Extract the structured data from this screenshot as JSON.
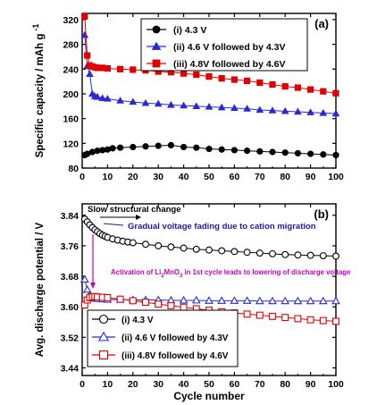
{
  "chart_data": [
    {
      "panel": "(a)",
      "type": "scatter",
      "ylabel": "Specific capacity / mAh g",
      "ylabel_sup": "-1",
      "xlim": [
        0,
        100
      ],
      "ylim": [
        80,
        330
      ],
      "xticks": [
        0,
        10,
        20,
        30,
        40,
        50,
        60,
        70,
        80,
        90,
        100
      ],
      "yticks": [
        80,
        120,
        160,
        200,
        240,
        280,
        320
      ],
      "legend_position": "top-center",
      "series": [
        {
          "name": "(i) 4.3 V",
          "color": "#000000",
          "marker": "circle",
          "filled": true,
          "x": [
            1,
            2,
            4,
            6,
            8,
            10,
            12,
            15,
            20,
            25,
            30,
            35,
            40,
            45,
            50,
            55,
            60,
            65,
            70,
            75,
            80,
            85,
            90,
            95,
            100
          ],
          "values": [
            101,
            103,
            106,
            108,
            109,
            110,
            112,
            113,
            114,
            115,
            116,
            117,
            114,
            113,
            111,
            110,
            109,
            108,
            107,
            106,
            105,
            104,
            103,
            102,
            101
          ]
        },
        {
          "name": "(ii) 4.6 V followed by 4.3V",
          "color": "#2a2ad4",
          "marker": "triangle",
          "filled": true,
          "x": [
            1,
            2,
            3,
            4,
            5,
            6,
            8,
            10,
            15,
            20,
            25,
            30,
            35,
            40,
            45,
            50,
            55,
            60,
            65,
            70,
            75,
            80,
            85,
            90,
            95,
            100
          ],
          "values": [
            295,
            245,
            232,
            200,
            196,
            195,
            193,
            192,
            189,
            187,
            185,
            184,
            182,
            181,
            180,
            179,
            178,
            177,
            176,
            174,
            173,
            172,
            171,
            170,
            169,
            168
          ]
        },
        {
          "name": "(iii) 4.8V followed by 4.6V",
          "color": "#e00000",
          "marker": "square",
          "filled": true,
          "x": [
            1,
            2,
            3,
            4,
            5,
            6,
            8,
            10,
            15,
            20,
            25,
            30,
            35,
            40,
            45,
            50,
            55,
            60,
            65,
            70,
            75,
            80,
            85,
            90,
            95,
            100
          ],
          "values": [
            325,
            262,
            246,
            244,
            243,
            242,
            242,
            241,
            240,
            239,
            238,
            236,
            235,
            233,
            231,
            228,
            225,
            223,
            221,
            218,
            215,
            212,
            210,
            207,
            204,
            201
          ]
        }
      ]
    },
    {
      "panel": "(b)",
      "type": "scatter",
      "xlabel": "Cycle number",
      "ylabel": "Avg. discharge potential / V",
      "xlim": [
        0,
        100
      ],
      "ylim": [
        3.42,
        3.87
      ],
      "xticks": [
        0,
        10,
        20,
        30,
        40,
        50,
        60,
        70,
        80,
        90,
        100
      ],
      "yticks": [
        3.44,
        3.52,
        3.6,
        3.68,
        3.76,
        3.84
      ],
      "legend_position": "bottom-left",
      "annotations": [
        "Slow structural change",
        "Gradual voltage fading due to cation migration",
        "Activation of Li",
        "2",
        "MnO",
        "3",
        " in 1st cycle leads to lowering of discharge voltage"
      ],
      "series": [
        {
          "name": "(i) 4.3 V",
          "color": "#000000",
          "marker": "circle",
          "filled": false,
          "x": [
            1,
            2,
            3,
            4,
            5,
            6,
            7,
            8,
            9,
            10,
            12,
            14,
            16,
            18,
            20,
            25,
            30,
            35,
            40,
            45,
            50,
            55,
            60,
            65,
            70,
            75,
            80,
            85,
            90,
            95,
            100
          ],
          "values": [
            3.83,
            3.823,
            3.815,
            3.808,
            3.802,
            3.797,
            3.792,
            3.788,
            3.785,
            3.782,
            3.778,
            3.775,
            3.772,
            3.77,
            3.768,
            3.764,
            3.76,
            3.757,
            3.754,
            3.751,
            3.749,
            3.747,
            3.745,
            3.743,
            3.741,
            3.739,
            3.737,
            3.736,
            3.735,
            3.734,
            3.733
          ]
        },
        {
          "name": "(ii) 4.6 V followed by 4.3V",
          "color": "#2a2ad4",
          "marker": "triangle",
          "filled": false,
          "x": [
            1,
            2,
            3,
            4,
            5,
            6,
            8,
            10,
            15,
            20,
            25,
            30,
            35,
            40,
            45,
            50,
            55,
            60,
            65,
            70,
            75,
            80,
            85,
            90,
            95,
            100
          ],
          "values": [
            3.672,
            3.645,
            3.63,
            3.624,
            3.622,
            3.621,
            3.62,
            3.619,
            3.619,
            3.618,
            3.618,
            3.618,
            3.617,
            3.617,
            3.617,
            3.616,
            3.616,
            3.616,
            3.616,
            3.615,
            3.615,
            3.615,
            3.615,
            3.615,
            3.615,
            3.615
          ]
        },
        {
          "name": "(iii) 4.8V followed by 4.6V",
          "color": "#e00000",
          "marker": "square",
          "filled": false,
          "x": [
            1,
            2,
            3,
            4,
            5,
            6,
            8,
            10,
            15,
            20,
            25,
            30,
            35,
            40,
            45,
            50,
            55,
            60,
            65,
            70,
            75,
            80,
            85,
            90,
            95,
            100
          ],
          "values": [
            3.605,
            3.618,
            3.624,
            3.626,
            3.627,
            3.626,
            3.625,
            3.624,
            3.62,
            3.616,
            3.612,
            3.607,
            3.603,
            3.599,
            3.595,
            3.591,
            3.587,
            3.584,
            3.581,
            3.578,
            3.575,
            3.572,
            3.569,
            3.566,
            3.564,
            3.562
          ]
        }
      ]
    }
  ]
}
